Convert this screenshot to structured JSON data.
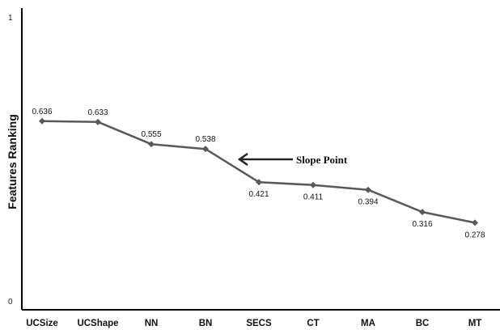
{
  "chart_data": {
    "type": "line",
    "categories": [
      "UCSize",
      "UCShape",
      "NN",
      "BN",
      "SECS",
      "CT",
      "MA",
      "BC",
      "MT"
    ],
    "values": [
      0.636,
      0.633,
      0.555,
      0.538,
      0.421,
      0.411,
      0.394,
      0.316,
      0.278
    ],
    "data_labels": [
      "0.636",
      "0.633",
      "0.555",
      "0.538",
      "0.421",
      "0.411",
      "0.394",
      "0.316",
      "0.278"
    ],
    "ylabel": "Features Ranking",
    "xlabel": "",
    "ylim": [
      0,
      1
    ],
    "yticks": [
      "0",
      "1"
    ],
    "grid": false,
    "legend": "none",
    "line_color": "#595959",
    "annotation": {
      "text": "Slope Point",
      "points_to": "SECS"
    }
  }
}
